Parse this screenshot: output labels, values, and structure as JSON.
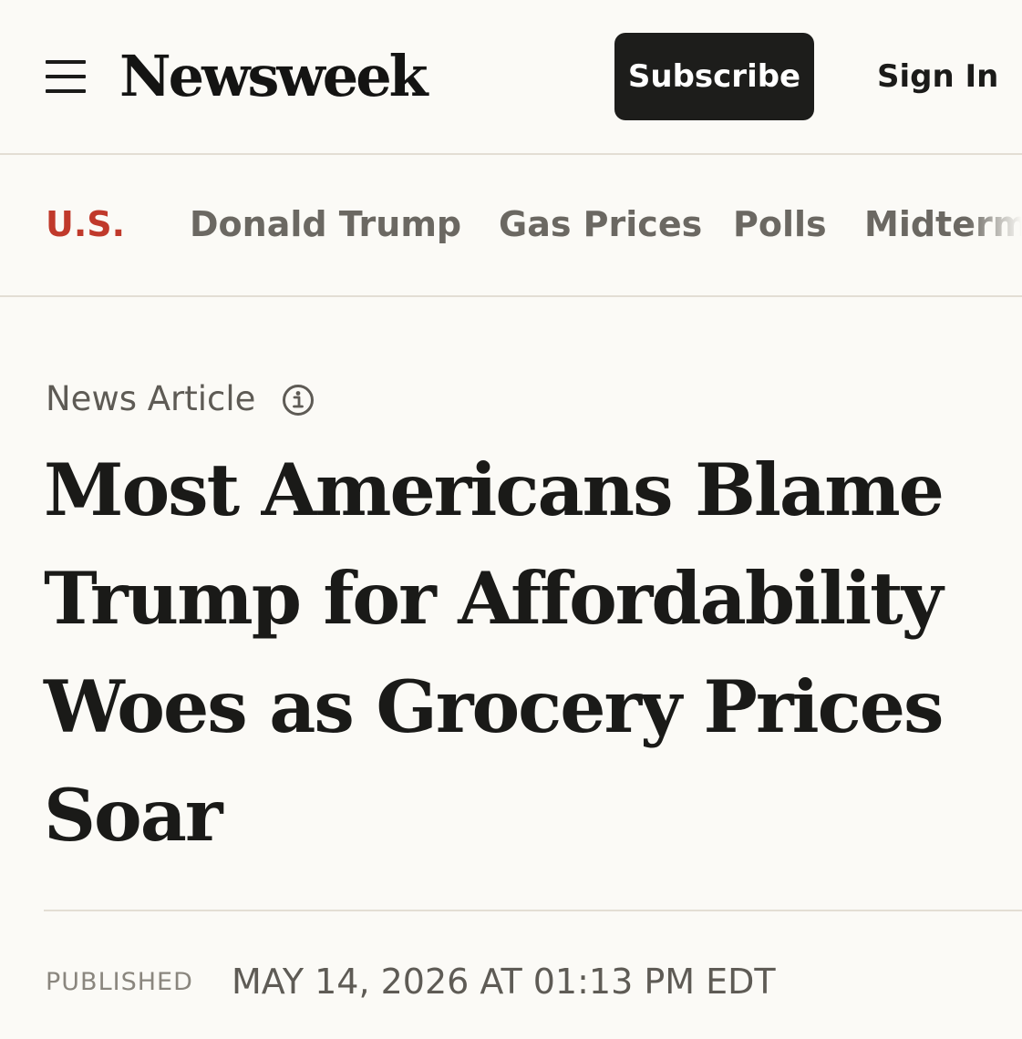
{
  "header": {
    "logo": "Newsweek",
    "subscribe_label": "Subscribe",
    "signin_label": "Sign In"
  },
  "nav": {
    "items": [
      {
        "label": "U.S.",
        "active": true
      },
      {
        "label": "Donald Trump"
      },
      {
        "label": "Gas Prices"
      },
      {
        "label": "Polls"
      },
      {
        "label": "Midterm"
      }
    ]
  },
  "article": {
    "type_label": "News Article",
    "headline": "Most Americans Blame Trump for Affordability Woes as Grocery Prices Soar",
    "published_label": "PUBLISHED",
    "published_date": "MAY 14, 2026 AT 01:13 PM EDT"
  },
  "icons": {
    "menu": "hamburger-menu-icon",
    "info": "info-icon"
  },
  "colors": {
    "background": "#fbfaf6",
    "accent": "#c0392b",
    "button": "#1d1d1b",
    "divider": "#e3ded4"
  }
}
